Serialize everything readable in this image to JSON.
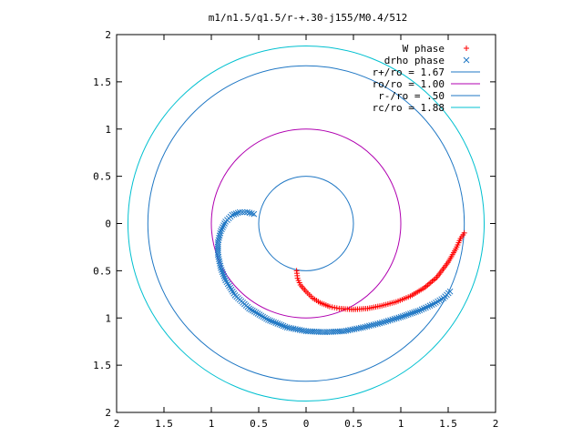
{
  "chart_data": {
    "type": "scatter",
    "title": "m1/n1.5/q1.5/r-+.30-j155/M0.4/512",
    "xlabel": "",
    "ylabel": "",
    "xlim": [
      -2,
      2
    ],
    "ylim": [
      -2,
      2
    ],
    "grid": false,
    "legend_position": "top-right",
    "x_ticks": [
      -2,
      -1.5,
      -1,
      -0.5,
      0,
      0.5,
      1,
      1.5,
      2
    ],
    "y_ticks": [
      -2,
      -1.5,
      -1,
      -0.5,
      0,
      0.5,
      1,
      1.5,
      2
    ],
    "x_tick_labels": [
      "2",
      "1.5",
      "1",
      "0.5",
      "0",
      "0.5",
      "1",
      "1.5",
      "2"
    ],
    "y_tick_labels": [
      "2",
      "1.5",
      "1",
      "0.5",
      "0",
      "0.5",
      "1",
      "1.5",
      "2"
    ],
    "circles": [
      {
        "name": "r+/ro = 1.67",
        "radius": 1.67,
        "color": "#1f77c4"
      },
      {
        "name": "ro/ro = 1.00",
        "radius": 1.0,
        "color": "#b000b0"
      },
      {
        "name": "r-/ro = .50",
        "radius": 0.5,
        "color": "#1f77c4"
      },
      {
        "name": "rc/ro = 1.88",
        "radius": 1.88,
        "color": "#00c0d0"
      }
    ],
    "series": [
      {
        "name": "W phase",
        "marker": "+",
        "color": "#ff0000",
        "points": [
          [
            -0.1,
            -0.5
          ],
          [
            -0.09,
            -0.58
          ],
          [
            -0.06,
            -0.65
          ],
          [
            0.0,
            -0.72
          ],
          [
            0.07,
            -0.79
          ],
          [
            0.15,
            -0.84
          ],
          [
            0.25,
            -0.88
          ],
          [
            0.35,
            -0.9
          ],
          [
            0.5,
            -0.91
          ],
          [
            0.65,
            -0.9
          ],
          [
            0.8,
            -0.87
          ],
          [
            0.95,
            -0.83
          ],
          [
            1.1,
            -0.77
          ],
          [
            1.25,
            -0.68
          ],
          [
            1.38,
            -0.57
          ],
          [
            1.5,
            -0.41
          ],
          [
            1.58,
            -0.27
          ],
          [
            1.63,
            -0.16
          ],
          [
            1.67,
            -0.1
          ]
        ]
      },
      {
        "name": "drho phase",
        "marker": "x",
        "color": "#1f77c4",
        "points": [
          [
            -0.55,
            0.1
          ],
          [
            -0.62,
            0.12
          ],
          [
            -0.7,
            0.12
          ],
          [
            -0.78,
            0.09
          ],
          [
            -0.85,
            0.02
          ],
          [
            -0.9,
            -0.08
          ],
          [
            -0.93,
            -0.2
          ],
          [
            -0.93,
            -0.33
          ],
          [
            -0.9,
            -0.47
          ],
          [
            -0.85,
            -0.6
          ],
          [
            -0.75,
            -0.76
          ],
          [
            -0.6,
            -0.9
          ],
          [
            -0.4,
            -1.02
          ],
          [
            -0.2,
            -1.1
          ],
          [
            0.0,
            -1.14
          ],
          [
            0.2,
            -1.15
          ],
          [
            0.4,
            -1.14
          ],
          [
            0.6,
            -1.1
          ],
          [
            0.8,
            -1.05
          ],
          [
            1.0,
            -0.99
          ],
          [
            1.2,
            -0.92
          ],
          [
            1.35,
            -0.85
          ],
          [
            1.45,
            -0.79
          ],
          [
            1.52,
            -0.72
          ]
        ]
      }
    ]
  }
}
